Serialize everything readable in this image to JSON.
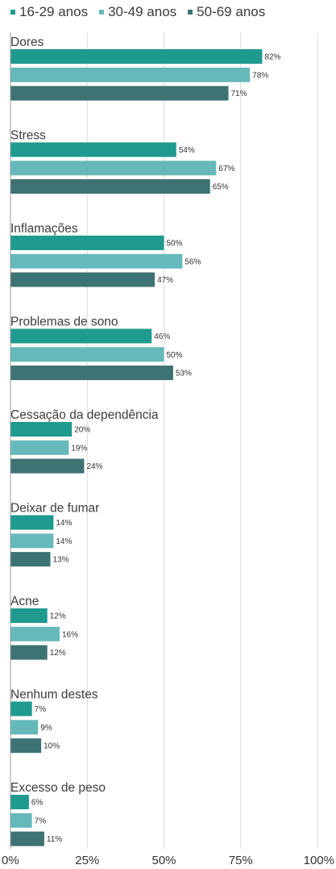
{
  "chart_data": {
    "type": "bar",
    "orientation": "horizontal",
    "categories": [
      "Dores",
      "Stress",
      "Inflamações",
      "Problemas de sono",
      "Cessação da dependência",
      "Deixar de fumar",
      "Acne",
      "Nenhum destes",
      "Excesso de peso"
    ],
    "series": [
      {
        "name": "16-29 anos",
        "color": "#1e9a8e",
        "values": [
          82,
          54,
          50,
          46,
          20,
          14,
          12,
          7,
          6
        ]
      },
      {
        "name": "30-49 anos",
        "color": "#66b9ba",
        "values": [
          78,
          67,
          56,
          50,
          19,
          14,
          16,
          9,
          7
        ]
      },
      {
        "name": "50-69 anos",
        "color": "#3d7372",
        "values": [
          71,
          65,
          47,
          53,
          24,
          13,
          12,
          10,
          11
        ]
      }
    ],
    "value_suffix": "%",
    "xlim": [
      0,
      100
    ],
    "x_ticks": [
      0,
      25,
      50,
      75,
      100
    ],
    "x_tick_labels": [
      "0%",
      "25%",
      "50%",
      "75%",
      "100%"
    ],
    "grid": true,
    "legend_position": "top-left"
  }
}
